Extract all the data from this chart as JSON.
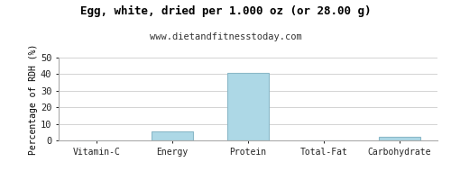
{
  "title": "Egg, white, dried per 1.000 oz (or 28.00 g)",
  "subtitle": "www.dietandfitnesstoday.com",
  "categories": [
    "Vitamin-C",
    "Energy",
    "Protein",
    "Total-Fat",
    "Carbohydrate"
  ],
  "values": [
    0,
    5.5,
    41,
    0.0,
    2.0
  ],
  "bar_color": "#add8e6",
  "bar_edge_color": "#8ab8c8",
  "ylabel": "Percentage of RDH (%)",
  "ylim": [
    0,
    50
  ],
  "yticks": [
    0,
    10,
    20,
    30,
    40,
    50
  ],
  "background_color": "#ffffff",
  "plot_bg_color": "#ffffff",
  "grid_color": "#cccccc",
  "title_fontsize": 9,
  "subtitle_fontsize": 7.5,
  "label_fontsize": 7,
  "ylabel_fontsize": 7,
  "tick_fontsize": 7.5
}
